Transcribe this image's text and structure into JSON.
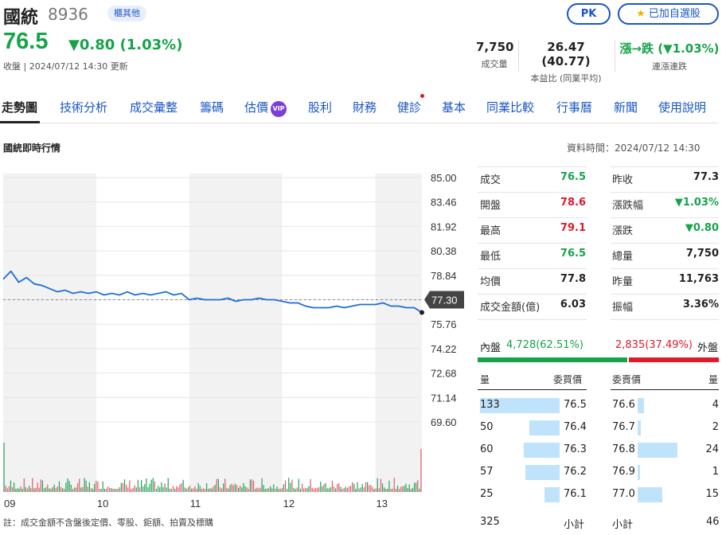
{
  "header": {
    "name": "國統",
    "code": "8936",
    "market_badge": "櫃其他",
    "pk_label": "PK",
    "fav_label": "已加自選股",
    "price": "76.5",
    "change": "▼0.80 (1.03%)",
    "updated": "收盤 | 2024/07/12 14:30 更新"
  },
  "stats": {
    "volume": {
      "value": "7,750",
      "label": "成交量"
    },
    "pe": {
      "value": "26.47 (40.77)",
      "label": "本益比 (同業平均)"
    },
    "streak": {
      "value": "漲→跌 (▼1.03%)",
      "label": "連漲連跌"
    }
  },
  "tabs": [
    "走勢圖",
    "技術分析",
    "成交彙整",
    "籌碼",
    "估價",
    "股利",
    "財務",
    "健診",
    "基本",
    "同業比較",
    "行事曆",
    "新聞",
    "使用說明"
  ],
  "vip_label": "VIP",
  "section": {
    "title": "國統即時行情",
    "data_time": "資料時間：2024/07/12 14:30"
  },
  "quote": {
    "left": [
      {
        "label": "成交",
        "value": "76.5",
        "color": "down"
      },
      {
        "label": "開盤",
        "value": "78.6",
        "color": "up"
      },
      {
        "label": "最高",
        "value": "79.1",
        "color": "up"
      },
      {
        "label": "最低",
        "value": "76.5",
        "color": "down"
      },
      {
        "label": "均價",
        "value": "77.8",
        "color": "neu"
      },
      {
        "label": "成交金額(億)",
        "value": "6.03",
        "color": "neu"
      }
    ],
    "right": [
      {
        "label": "昨收",
        "value": "77.3",
        "color": "neu"
      },
      {
        "label": "漲跌幅",
        "value": "▼1.03%",
        "color": "down"
      },
      {
        "label": "漲跌",
        "value": "▼0.80",
        "color": "down"
      },
      {
        "label": "總量",
        "value": "7,750",
        "color": "neu"
      },
      {
        "label": "昨量",
        "value": "11,763",
        "color": "neu"
      },
      {
        "label": "振幅",
        "value": "3.36%",
        "color": "neu"
      }
    ]
  },
  "inner_outer": {
    "inner_label": "內盤",
    "inner_value": "4,728(62.51%)",
    "inner_ratio": 0.6251,
    "outer_value": "2,835(37.49%)",
    "outer_label": "外盤"
  },
  "order_book": {
    "bid_qty_header": "量",
    "bid_price_header": "委買價",
    "ask_price_header": "委賣價",
    "ask_qty_header": "量",
    "bids": [
      {
        "qty": "133",
        "price": "76.5",
        "ratio": 1.0
      },
      {
        "qty": "50",
        "price": "76.4",
        "ratio": 0.376
      },
      {
        "qty": "60",
        "price": "76.3",
        "ratio": 0.451
      },
      {
        "qty": "57",
        "price": "76.2",
        "ratio": 0.429
      },
      {
        "qty": "25",
        "price": "76.1",
        "ratio": 0.188
      }
    ],
    "asks": [
      {
        "price": "76.6",
        "qty": "4",
        "ratio": 0.087
      },
      {
        "price": "76.7",
        "qty": "2",
        "ratio": 0.043
      },
      {
        "price": "76.8",
        "qty": "24",
        "ratio": 0.522
      },
      {
        "price": "76.9",
        "qty": "1",
        "ratio": 0.022
      },
      {
        "price": "77.0",
        "qty": "15",
        "ratio": 0.326
      }
    ],
    "bid_total": "325",
    "bid_total_label": "小計",
    "ask_total_label": "小計",
    "ask_total": "46"
  },
  "chart_data": {
    "type": "line",
    "y_ticks": [
      "85.00",
      "83.46",
      "81.92",
      "80.38",
      "78.84",
      "77.30",
      "75.76",
      "74.22",
      "72.68",
      "71.14",
      "69.60"
    ],
    "ylim": [
      69.6,
      85.0
    ],
    "x_ticks": [
      "09",
      "10",
      "11",
      "12",
      "13"
    ],
    "time_range": [
      "09:00",
      "13:30"
    ],
    "reference_price": "77.30",
    "series": [
      {
        "x": [
          "09:00",
          "09:05",
          "09:10",
          "09:15",
          "09:20",
          "09:25",
          "09:30",
          "09:35",
          "09:40",
          "09:45",
          "09:50",
          "09:55",
          "10:00",
          "10:05",
          "10:10",
          "10:15",
          "10:20",
          "10:25",
          "10:30",
          "10:35",
          "10:40",
          "10:45",
          "10:50",
          "10:55",
          "11:00",
          "11:05",
          "11:10",
          "11:15",
          "11:20",
          "11:25",
          "11:30",
          "11:35",
          "11:40",
          "11:45",
          "11:50",
          "11:55",
          "12:00",
          "12:05",
          "12:10",
          "12:15",
          "12:20",
          "12:25",
          "12:30",
          "12:35",
          "12:40",
          "12:45",
          "12:50",
          "12:55",
          "13:00",
          "13:05",
          "13:10",
          "13:15",
          "13:20",
          "13:25",
          "13:30"
        ],
        "values": [
          78.6,
          79.1,
          78.4,
          78.7,
          78.3,
          78.2,
          78.0,
          77.8,
          77.9,
          77.7,
          77.8,
          77.7,
          77.8,
          77.6,
          77.7,
          77.6,
          77.8,
          77.6,
          77.7,
          77.6,
          77.7,
          77.8,
          77.6,
          77.7,
          77.3,
          77.4,
          77.3,
          77.3,
          77.3,
          77.4,
          77.2,
          77.3,
          77.3,
          77.4,
          77.3,
          77.3,
          77.2,
          77.1,
          77.1,
          76.9,
          76.8,
          76.8,
          76.8,
          76.9,
          76.8,
          76.9,
          77.0,
          77.0,
          77.0,
          77.1,
          76.9,
          76.9,
          76.8,
          76.8,
          76.5
        ]
      }
    ],
    "volume_scale": "relative"
  },
  "footnote": "註：成交金額不含盤後定價、零股、鉅額、拍賣及標購"
}
